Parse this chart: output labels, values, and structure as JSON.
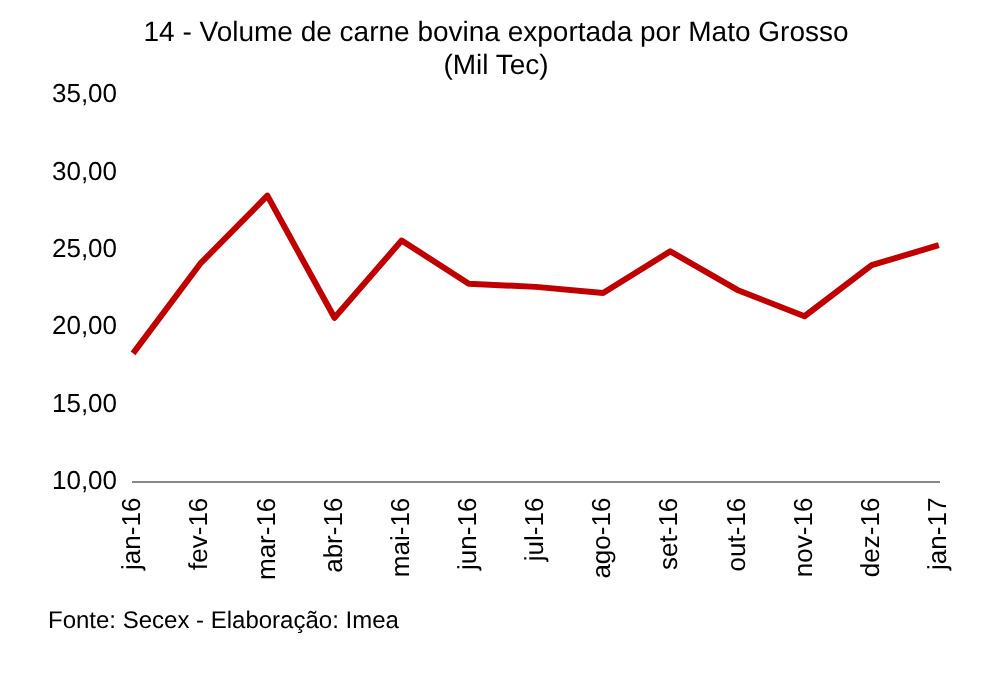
{
  "chart_data": {
    "type": "line",
    "title": [
      "14 - Volume de carne bovina exportada por Mato Grosso",
      "(Mil Tec)"
    ],
    "categories": [
      "jan-16",
      "fev-16",
      "mar-16",
      "abr-16",
      "mai-16",
      "jun-16",
      "jul-16",
      "ago-16",
      "set-16",
      "out-16",
      "nov-16",
      "dez-16",
      "jan-17"
    ],
    "series": [
      {
        "color": "#c00000",
        "values": [
          18.3,
          24.1,
          28.5,
          20.6,
          25.6,
          22.8,
          22.6,
          22.2,
          24.9,
          22.4,
          20.7,
          24.0,
          25.3
        ]
      }
    ],
    "ylim": [
      10,
      35
    ],
    "yticks": [
      {
        "value": 10,
        "label": "10,00"
      },
      {
        "value": 15,
        "label": "15,00"
      },
      {
        "value": 20,
        "label": "20,00"
      },
      {
        "value": 25,
        "label": "25,00"
      },
      {
        "value": 30,
        "label": "30,00"
      },
      {
        "value": 35,
        "label": "35,00"
      }
    ],
    "grid": false,
    "legend": false,
    "marker": "none",
    "line_style": "solid",
    "annotations": [
      "Fonte: Secex - Elaboração: Imea"
    ]
  }
}
